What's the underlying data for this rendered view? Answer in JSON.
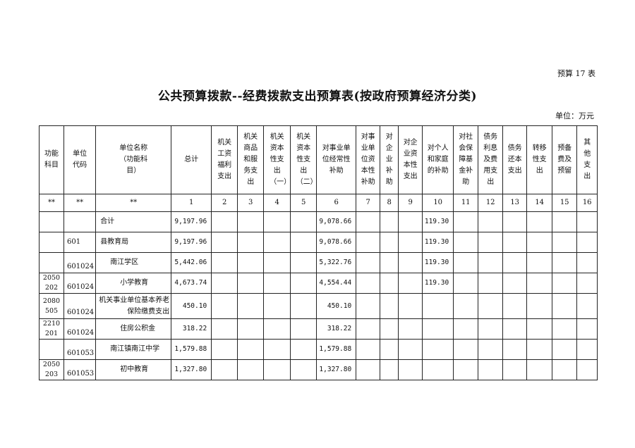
{
  "form_number": "预算 17 表",
  "title": "公共预算拨款--经费拨款支出预算表(按政府预算经济分类)",
  "unit": "单位：万元",
  "table": {
    "headers": [
      "功能科目",
      "单位代码",
      "单位名称（功能科目）",
      "总计",
      "机关工资福利支出",
      "机关商品和服务支出",
      "机关资本性支出（一）",
      "机关资本性支出（二）",
      "对事业单位经常性补助",
      "对事业单位资本性补助",
      "对企业补助",
      "对企业资本性支出",
      "对个人和家庭的补助",
      "对社会保障基金补助",
      "债务利息及费用支出",
      "债务还本支出",
      "转移性支出",
      "预备费及预留",
      "其他支出"
    ],
    "header_lines": [
      [
        "功能",
        "科目"
      ],
      [
        "单位",
        "代码"
      ],
      [
        "单位名称",
        "(功能科目)"
      ],
      [
        "总计"
      ],
      [
        "机关",
        "工资",
        "福利",
        "支出"
      ],
      [
        "机关",
        "商品",
        "和服",
        "务支",
        "出"
      ],
      [
        "机关",
        "资本",
        "性支",
        "出",
        "(一)"
      ],
      [
        "机关",
        "资本",
        "性支",
        "出",
        "(二)"
      ],
      [
        "对事业单",
        "位经常性",
        "补助"
      ],
      [
        "对事",
        "业单",
        "位资",
        "本性",
        "补助"
      ],
      [
        "对",
        "企",
        "业",
        "补",
        "助"
      ],
      [
        "对企",
        "业资",
        "本性",
        "支出"
      ],
      [
        "对个人",
        "和家庭",
        "的补助"
      ],
      [
        "对社",
        "会保",
        "障基",
        "金补",
        "助"
      ],
      [
        "债务",
        "利息",
        "及费",
        "用支",
        "出"
      ],
      [
        "债务",
        "还本",
        "支出"
      ],
      [
        "转移",
        "性支",
        "出"
      ],
      [
        "预备",
        "费及",
        "预留"
      ],
      [
        "其",
        "他",
        "支",
        "出"
      ]
    ],
    "column_numbers": [
      "**",
      "**",
      "**",
      "1",
      "2",
      "3",
      "4",
      "5",
      "6",
      "7",
      "8",
      "9",
      "10",
      "11",
      "12",
      "13",
      "14",
      "15",
      "16"
    ],
    "rows": [
      {
        "func": [],
        "code": "",
        "name": "合计",
        "indent": 0,
        "total": "9,197.96",
        "c6": "9,078.66",
        "c10": "119.30"
      },
      {
        "func": [],
        "code": "601",
        "name": "县教育局",
        "indent": 0,
        "total": "9,197.96",
        "c6": "9,078.66",
        "c10": "119.30"
      },
      {
        "func": [],
        "code": "601024",
        "name": "南江学区",
        "indent": 1,
        "total": "5,442.06",
        "c6": "5,322.76",
        "c10": "119.30"
      },
      {
        "func": [
          "2050",
          "202"
        ],
        "code": "601024",
        "name": "小学教育",
        "indent": 2,
        "total": "4,673.74",
        "c6": "4,554.44",
        "c10": "119.30"
      },
      {
        "func": [
          "2080",
          "505"
        ],
        "code": "601024",
        "name": "机关事业单位基本养老保险缴费支出",
        "indent": 2,
        "total": "450.10",
        "c6": "450.10",
        "c10": ""
      },
      {
        "func": [
          "2210",
          "201"
        ],
        "code": "601024",
        "name": "住房公积金",
        "indent": 2,
        "total": "318.22",
        "c6": "318.22",
        "c10": ""
      },
      {
        "func": [],
        "code": "601053",
        "name": "南江镇南江中学",
        "indent": 1,
        "total": "1,579.88",
        "c6": "1,579.88",
        "c10": ""
      },
      {
        "func": [
          "2050",
          "203"
        ],
        "code": "601053",
        "name": "初中教育",
        "indent": 2,
        "total": "1,327.80",
        "c6": "1,327.80",
        "c10": ""
      }
    ]
  }
}
